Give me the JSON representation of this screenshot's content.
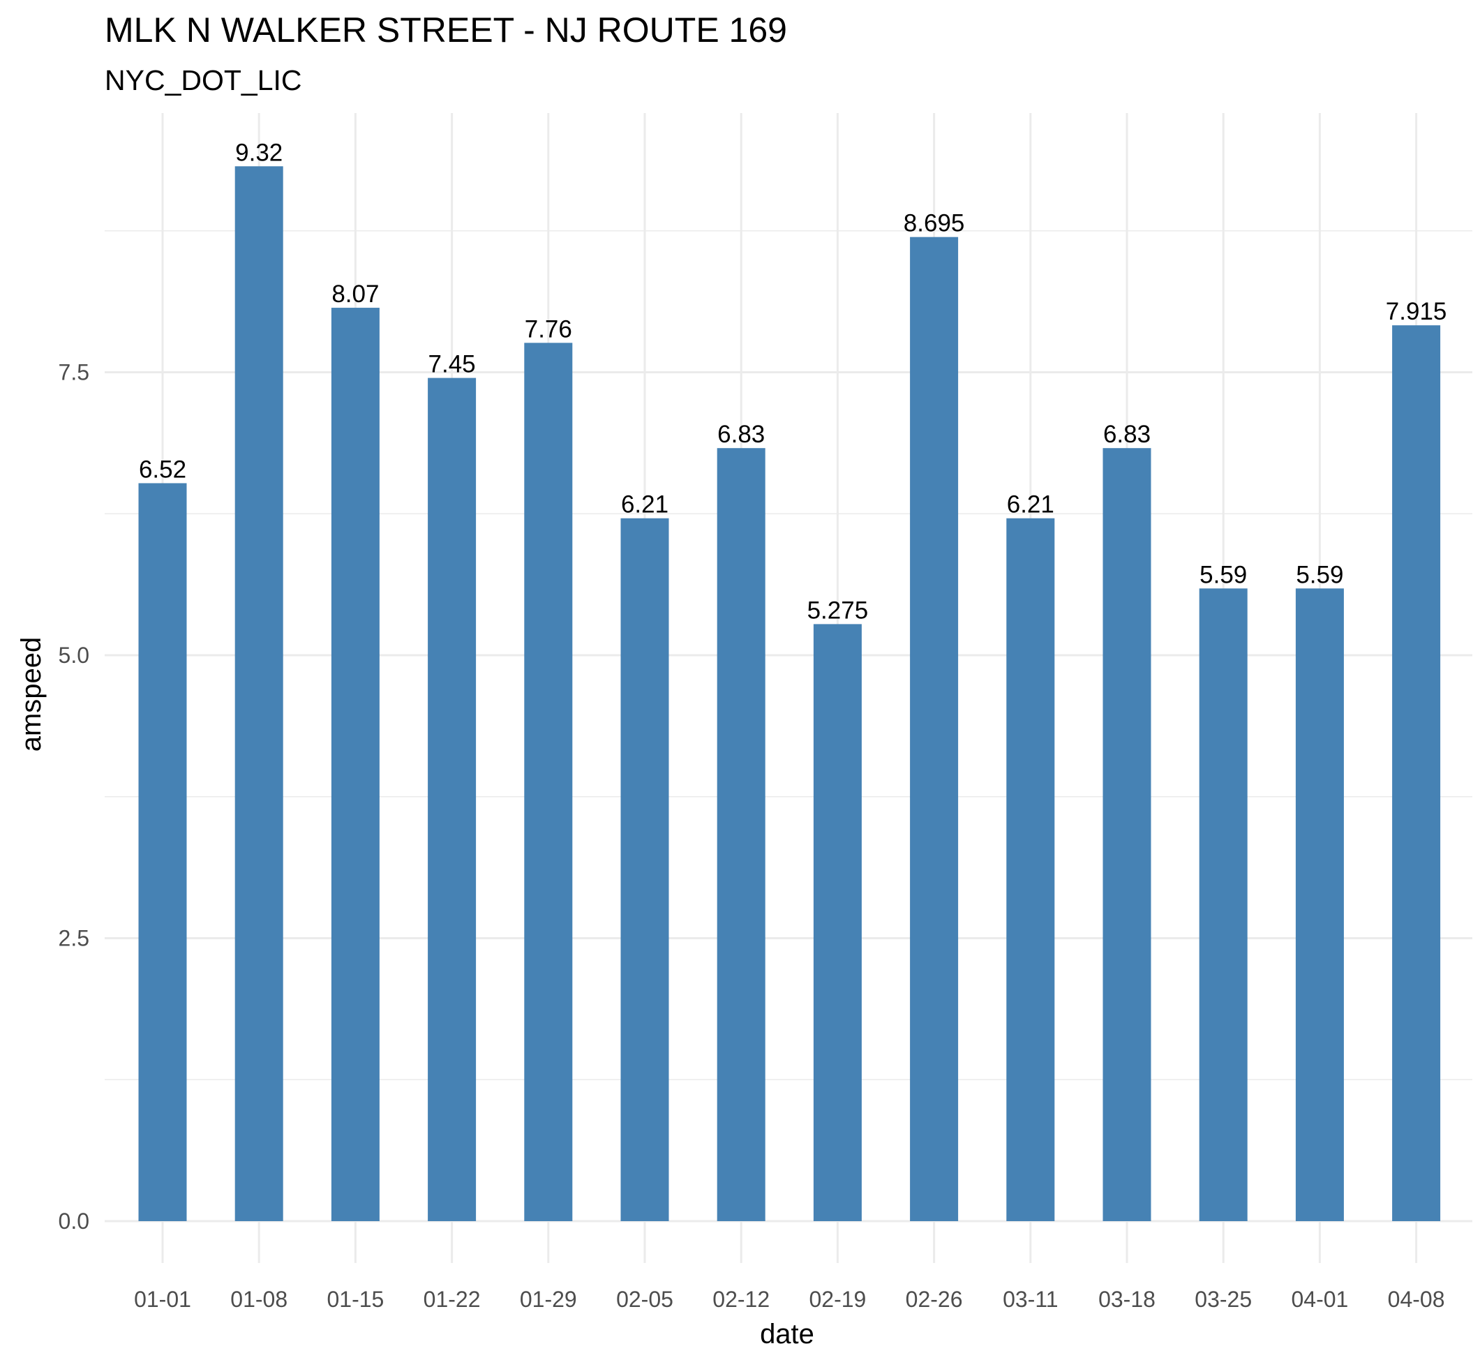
{
  "chart_data": {
    "type": "bar",
    "title": "MLK N WALKER STREET - NJ ROUTE 169",
    "subtitle": "NYC_DOT_LIC",
    "xlabel": "date",
    "ylabel": "amspeed",
    "categories": [
      "01-01",
      "01-08",
      "01-15",
      "01-22",
      "01-29",
      "02-05",
      "02-12",
      "02-19",
      "02-26",
      "03-11",
      "03-18",
      "03-25",
      "04-01",
      "04-08"
    ],
    "values": [
      6.52,
      9.32,
      8.07,
      7.45,
      7.76,
      6.21,
      6.83,
      5.275,
      8.695,
      6.21,
      6.83,
      5.59,
      5.59,
      7.915
    ],
    "value_labels": [
      "6.52",
      "9.32",
      "8.07",
      "7.45",
      "7.76",
      "6.21",
      "6.83",
      "5.275",
      "8.695",
      "6.21",
      "6.83",
      "5.59",
      "5.59",
      "7.915"
    ],
    "y_ticks": [
      0,
      2.5,
      5,
      7.5
    ],
    "y_tick_labels": [
      "0.0",
      "2.5",
      "5.0",
      "7.5"
    ],
    "ylim": [
      0,
      9.6
    ],
    "bar_color": "#4682B4",
    "grid": true,
    "legend": "none"
  }
}
